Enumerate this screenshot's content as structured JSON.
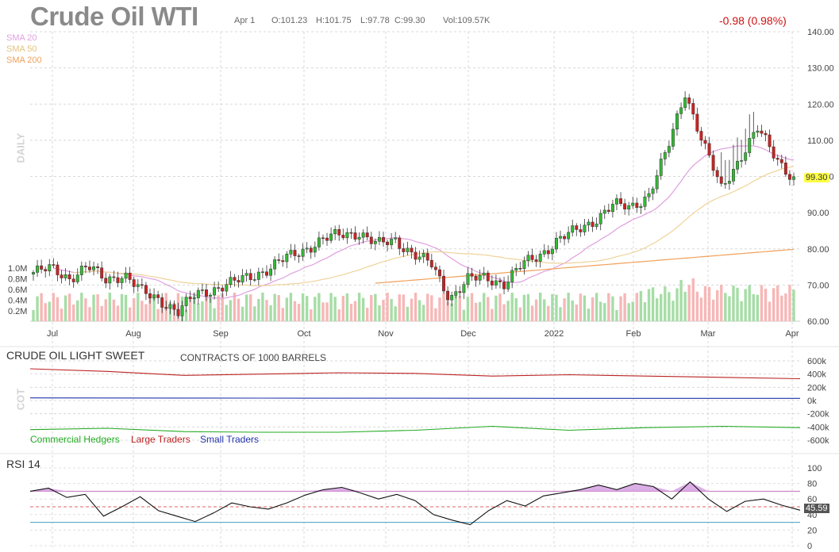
{
  "header": {
    "title": "Crude Oil WTI",
    "date": "Apr 1",
    "open": "O:101.23",
    "high": "H:101.75",
    "low": "L:97.78",
    "close": "C:99.30",
    "volume": "Vol:109.57K",
    "change": "-0.98 (0.98%)"
  },
  "price_panel": {
    "timeframe_label": "DAILY",
    "sma_labels": [
      "SMA 20",
      "SMA 50",
      "SMA 200"
    ],
    "sma_colors": [
      "#dfa0df",
      "#efd39a",
      "#f0a05a"
    ],
    "last_price_tag": "99.30"
  },
  "cot_panel": {
    "title": "CRUDE OIL LIGHT SWEET",
    "subtitle": "CONTRACTS OF 1000 BARRELS",
    "side_label": "COT",
    "legend": [
      {
        "label": "Commercial Hedgers",
        "color": "#22aa22"
      },
      {
        "label": "Large Traders",
        "color": "#bb2222"
      },
      {
        "label": "Small Traders",
        "color": "#2233aa"
      }
    ]
  },
  "rsi_panel": {
    "title": "RSI 14",
    "last_value_tag": "45.59"
  },
  "chart_data": [
    {
      "type": "candlestick",
      "title": "Crude Oil WTI",
      "ylabel": "DAILY",
      "ylim": [
        60,
        140
      ],
      "y_ticks": [
        "60.00",
        "70.00",
        "80.00",
        "90.00",
        "100.00",
        "110.00",
        "120.00",
        "130.00",
        "140.00"
      ],
      "x_ticks": [
        "Jul",
        "Aug",
        "Sep",
        "Oct",
        "Nov",
        "Dec",
        "2022",
        "Feb",
        "Mar",
        "Apr"
      ],
      "close_series": [
        [
          "Jul",
          73.5
        ],
        [
          "Jul",
          74.5
        ],
        [
          "Jul",
          72.0
        ],
        [
          "Jul",
          75.0
        ],
        [
          "Aug",
          71.5
        ],
        [
          "Aug",
          73.0
        ],
        [
          "Aug",
          68.0
        ],
        [
          "Aug",
          66.0
        ],
        [
          "Aug",
          62.5
        ],
        [
          "Aug",
          67.5
        ],
        [
          "Sep",
          69.0
        ],
        [
          "Sep",
          70.5
        ],
        [
          "Sep",
          72.5
        ],
        [
          "Sep",
          74.5
        ],
        [
          "Oct",
          77.5
        ],
        [
          "Oct",
          80.0
        ],
        [
          "Oct",
          82.5
        ],
        [
          "Oct",
          84.0
        ],
        [
          "Nov",
          84.5
        ],
        [
          "Nov",
          81.0
        ],
        [
          "Nov",
          82.5
        ],
        [
          "Nov",
          78.5
        ],
        [
          "Nov",
          75.5
        ],
        [
          "Dec",
          66.5
        ],
        [
          "Dec",
          71.5
        ],
        [
          "Dec",
          72.0
        ],
        [
          "Dec",
          70.5
        ],
        [
          "2022",
          75.5
        ],
        [
          "2022",
          78.5
        ],
        [
          "2022",
          82.5
        ],
        [
          "2022",
          85.0
        ],
        [
          "Feb",
          88.0
        ],
        [
          "Feb",
          92.0
        ],
        [
          "Feb",
          91.5
        ],
        [
          "Feb",
          95.0
        ],
        [
          "Mar",
          107.0
        ],
        [
          "Mar",
          123.5
        ],
        [
          "Mar",
          109.0
        ],
        [
          "Mar",
          96.5
        ],
        [
          "Mar",
          105.0
        ],
        [
          "Mar",
          113.0
        ],
        [
          "Apr",
          105.5
        ],
        [
          "Apr",
          99.3
        ]
      ],
      "volume_axis_ticks": [
        "0.2M",
        "0.4M",
        "0.6M",
        "0.8M",
        "1.0M"
      ]
    },
    {
      "type": "line",
      "title": "CRUDE OIL LIGHT SWEET",
      "subtitle": "CONTRACTS OF 1000 BARRELS",
      "ylabel": "COT",
      "ylim": [
        -600000,
        600000
      ],
      "y_ticks": [
        "600k",
        "400k",
        "200k",
        "0k",
        "-200k",
        "-400k",
        "-600k"
      ],
      "series": [
        {
          "name": "Commercial Hedgers",
          "values": [
            -440000,
            -420000,
            -470000,
            -480000,
            -480000,
            -450000,
            -390000,
            -450000,
            -410000,
            -390000,
            -410000
          ]
        },
        {
          "name": "Large Traders",
          "values": [
            480000,
            440000,
            380000,
            400000,
            420000,
            410000,
            370000,
            390000,
            370000,
            350000,
            330000
          ]
        },
        {
          "name": "Small Traders",
          "values": [
            40000,
            38000,
            37000,
            36000,
            35000,
            35000,
            34000,
            33000,
            33000,
            33000,
            33000
          ]
        }
      ]
    },
    {
      "type": "line",
      "title": "RSI 14",
      "ylim": [
        0,
        100
      ],
      "y_ticks": [
        "100",
        "80",
        "60",
        "40",
        "20",
        "0"
      ],
      "reference_lines": [
        70,
        50,
        30
      ],
      "series": [
        {
          "name": "RSI 14",
          "values": [
            70,
            74,
            62,
            66,
            38,
            50,
            63,
            45,
            38,
            31,
            42,
            55,
            50,
            47,
            55,
            65,
            72,
            75,
            68,
            60,
            66,
            58,
            40,
            33,
            27,
            45,
            58,
            51,
            64,
            68,
            72,
            78,
            72,
            80,
            76,
            60,
            82,
            60,
            44,
            57,
            60,
            52,
            45.59
          ]
        }
      ]
    }
  ]
}
